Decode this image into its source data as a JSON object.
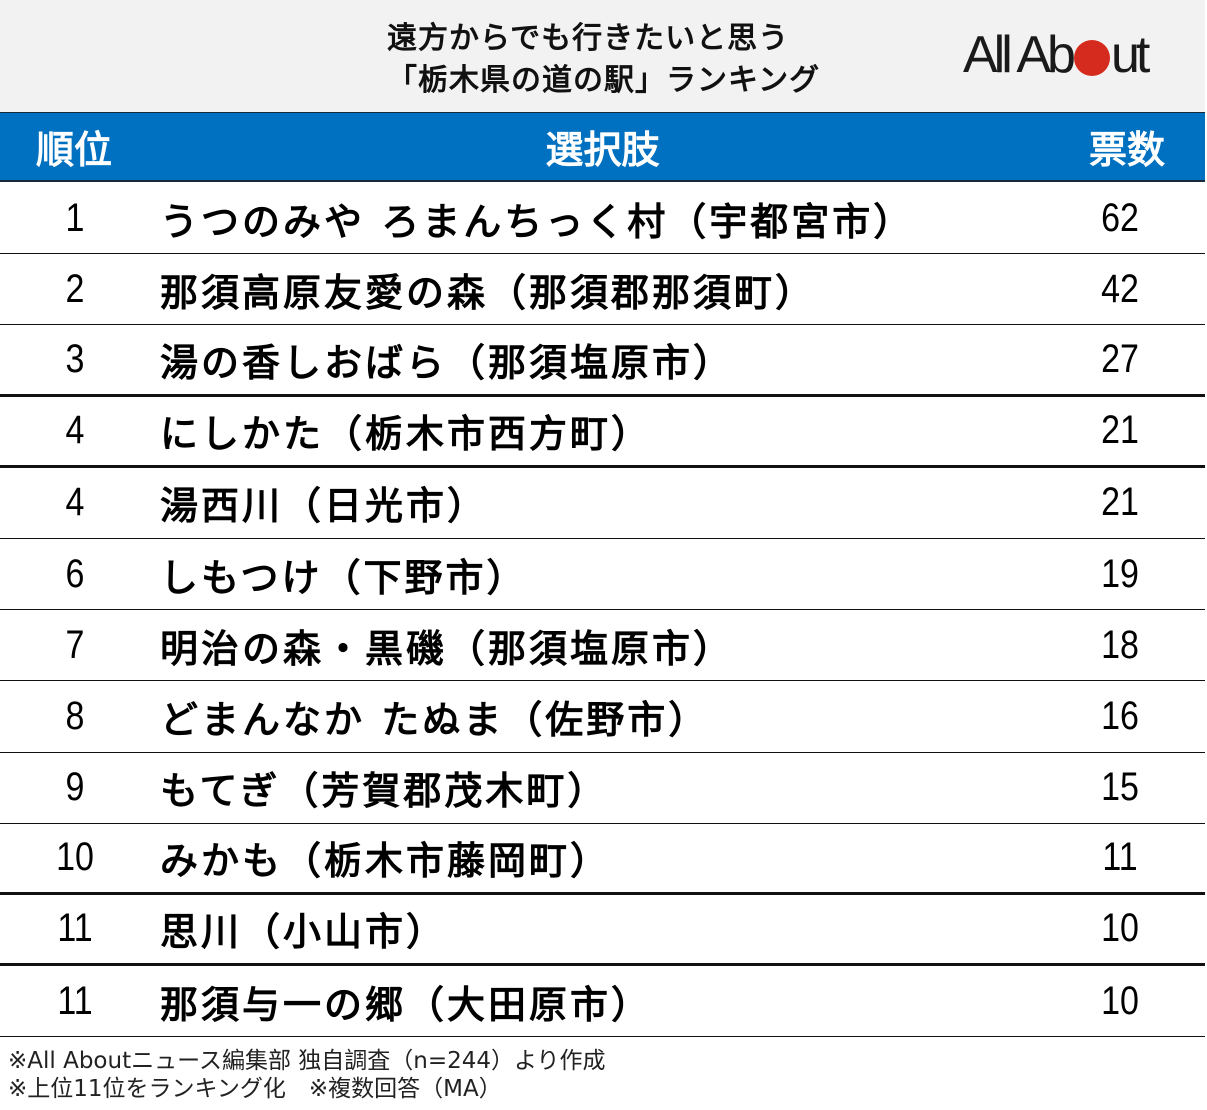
{
  "header": {
    "title_line1": "遠方からでも行きたいと思う",
    "title_line2": "「栃木県の道の駅」ランキング",
    "logo": {
      "text_before": "All Ab",
      "text_after": "ut",
      "dot_color": "#d52b1e"
    }
  },
  "table": {
    "columns": {
      "rank": "順位",
      "name": "選択肢",
      "votes": "票数"
    },
    "header_color": "#0070c0",
    "rows": [
      {
        "rank": "1",
        "name": "うつのみや ろまんちっく村（宇都宮市）",
        "votes": "62"
      },
      {
        "rank": "2",
        "name": "那須高原友愛の森（那須郡那須町）",
        "votes": "42"
      },
      {
        "rank": "3",
        "name": "湯の香しおばら（那須塩原市）",
        "votes": "27"
      },
      {
        "rank": "4",
        "name": "にしかた（栃木市西方町）",
        "votes": "21"
      },
      {
        "rank": "4",
        "name": "湯西川（日光市）",
        "votes": "21"
      },
      {
        "rank": "6",
        "name": "しもつけ（下野市）",
        "votes": "19"
      },
      {
        "rank": "7",
        "name": "明治の森・黒磯（那須塩原市）",
        "votes": "18"
      },
      {
        "rank": "8",
        "name": "どまんなか たぬま（佐野市）",
        "votes": "16"
      },
      {
        "rank": "9",
        "name": "もてぎ（芳賀郡茂木町）",
        "votes": "15"
      },
      {
        "rank": "10",
        "name": "みかも（栃木市藤岡町）",
        "votes": "11"
      },
      {
        "rank": "11",
        "name": "思川（小山市）",
        "votes": "10"
      },
      {
        "rank": "11",
        "name": "那須与一の郷（大田原市）",
        "votes": "10"
      }
    ]
  },
  "notes": {
    "line1": "※All Aboutニュース編集部 独自調査（n=244）より作成",
    "line2": "※上位11位をランキング化　※複数回答（MA）"
  },
  "chart_data": {
    "type": "table",
    "title": "遠方からでも行きたいと思う「栃木県の道の駅」ランキング",
    "columns": [
      "順位",
      "選択肢",
      "票数"
    ],
    "categories": [
      "うつのみや ろまんちっく村（宇都宮市）",
      "那須高原友愛の森（那須郡那須町）",
      "湯の香しおばら（那須塩原市）",
      "にしかた（栃木市西方町）",
      "湯西川（日光市）",
      "しもつけ（下野市）",
      "明治の森・黒磯（那須塩原市）",
      "どまんなか たぬま（佐野市）",
      "もてぎ（芳賀郡茂木町）",
      "みかも（栃木市藤岡町）",
      "思川（小山市）",
      "那須与一の郷（大田原市）"
    ],
    "ranks": [
      1,
      2,
      3,
      4,
      4,
      6,
      7,
      8,
      9,
      10,
      11,
      11
    ],
    "values": [
      62,
      42,
      27,
      21,
      21,
      19,
      18,
      16,
      15,
      11,
      10,
      10
    ],
    "notes": [
      "※All Aboutニュース編集部 独自調査（n=244）より作成",
      "※上位11位をランキング化　※複数回答（MA）"
    ],
    "sample_size": 244
  }
}
